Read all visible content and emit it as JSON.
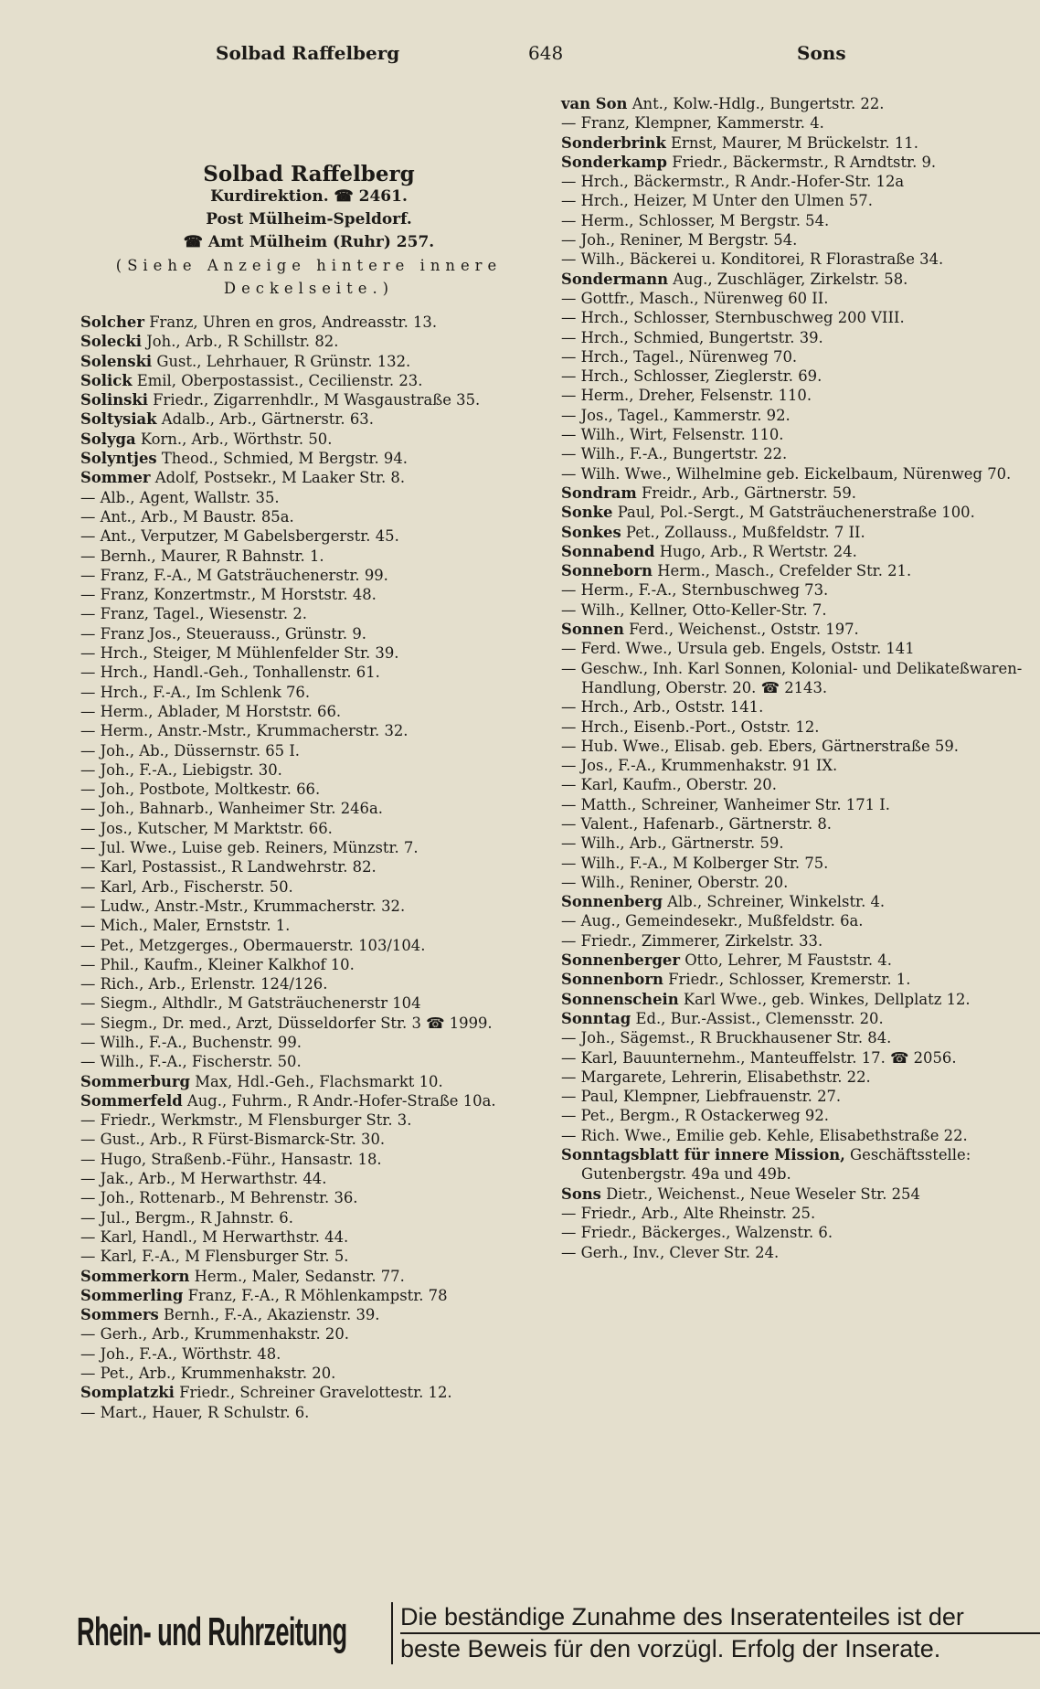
{
  "header": {
    "left": "Solbad Raffelberg",
    "page": "648",
    "right": "Sons"
  },
  "intro": {
    "title": "Solbad Raffelberg",
    "line1": "Kurdirektion. ☎ 2461.",
    "line2": "Post Mülheim-Speldorf.",
    "line3": "☎ Amt Mülheim (Ruhr) 257.",
    "line4": "(Siehe Anzeige hintere innere",
    "line5": "Deckelseite.)"
  },
  "left": [
    {
      "n": "Solcher",
      "t": "Franz, Uhren en gros, Andreasstr. 13."
    },
    {
      "n": "Solecki",
      "t": "Joh., Arb., R Schillstr. 82."
    },
    {
      "n": "Solenski",
      "t": "Gust., Lehrhauer, R Grünstr. 132."
    },
    {
      "n": "Solick",
      "t": "Emil, Oberpostassist., Cecilienstr. 23."
    },
    {
      "n": "Solinski",
      "t": "Friedr., Zigarrenhdlr., M Wasgaustraße 35."
    },
    {
      "n": "Soltysiak",
      "t": "Adalb., Arb., Gärtnerstr. 63."
    },
    {
      "n": "Solyga",
      "t": "Korn., Arb., Wörthstr. 50."
    },
    {
      "n": "Solyntjes",
      "t": "Theod., Schmied, M Bergstr. 94."
    },
    {
      "n": "Sommer",
      "t": "Adolf, Postsekr., M Laaker Str. 8."
    },
    {
      "n": "—",
      "t": "Alb., Agent, Wallstr. 35."
    },
    {
      "n": "—",
      "t": "Ant., Arb., M Baustr. 85a."
    },
    {
      "n": "—",
      "t": "Ant., Verputzer, M Gabelsbergerstr. 45."
    },
    {
      "n": "—",
      "t": "Bernh., Maurer, R Bahnstr. 1."
    },
    {
      "n": "—",
      "t": "Franz, F.-A., M Gatsträuchenerstr. 99."
    },
    {
      "n": "—",
      "t": "Franz, Konzertmstr., M Horststr. 48."
    },
    {
      "n": "—",
      "t": "Franz, Tagel., Wiesenstr. 2."
    },
    {
      "n": "—",
      "t": "Franz Jos., Steuerauss., Grünstr. 9."
    },
    {
      "n": "—",
      "t": "Hrch., Steiger, M Mühlenfelder Str. 39."
    },
    {
      "n": "—",
      "t": "Hrch., Handl.-Geh., Tonhallenstr. 61."
    },
    {
      "n": "—",
      "t": "Hrch., F.-A., Im Schlenk 76."
    },
    {
      "n": "—",
      "t": "Herm., Ablader, M Horststr. 66."
    },
    {
      "n": "—",
      "t": "Herm., Anstr.-Mstr., Krummacherstr. 32."
    },
    {
      "n": "—",
      "t": "Joh., Ab., Düssernstr. 65 I."
    },
    {
      "n": "—",
      "t": "Joh., F.-A., Liebigstr. 30."
    },
    {
      "n": "—",
      "t": "Joh., Postbote, Moltkestr. 66."
    },
    {
      "n": "—",
      "t": "Joh., Bahnarb., Wanheimer Str. 246a."
    },
    {
      "n": "—",
      "t": "Jos., Kutscher, M Marktstr. 66."
    },
    {
      "n": "—",
      "t": "Jul. Wwe., Luise geb. Reiners, Münzstr. 7."
    },
    {
      "n": "—",
      "t": "Karl, Postassist., R Landwehrstr. 82."
    },
    {
      "n": "—",
      "t": "Karl, Arb., Fischerstr. 50."
    },
    {
      "n": "—",
      "t": "Ludw., Anstr.-Mstr., Krummacherstr. 32."
    },
    {
      "n": "—",
      "t": "Mich., Maler, Ernststr. 1."
    },
    {
      "n": "—",
      "t": "Pet., Metzgerges., Obermauerstr. 103/104."
    },
    {
      "n": "—",
      "t": "Phil., Kaufm., Kleiner Kalkhof 10."
    },
    {
      "n": "—",
      "t": "Rich., Arb., Erlenstr. 124/126."
    },
    {
      "n": "—",
      "t": "Siegm., Althdlr., M Gatsträuchenerstr 104"
    },
    {
      "n": "—",
      "t": "Siegm., Dr. med., Arzt, Düsseldorfer Str. 3 ☎ 1999."
    },
    {
      "n": "—",
      "t": "Wilh., F.-A., Buchenstr. 99."
    },
    {
      "n": "—",
      "t": "Wilh., F.-A., Fischerstr. 50."
    },
    {
      "n": "Sommerburg",
      "t": "Max, Hdl.-Geh., Flachsmarkt 10."
    },
    {
      "n": "Sommerfeld",
      "t": "Aug., Fuhrm., R Andr.-Hofer-Straße 10a."
    },
    {
      "n": "—",
      "t": "Friedr., Werkmstr., M Flensburger Str. 3."
    },
    {
      "n": "—",
      "t": "Gust., Arb., R Fürst-Bismarck-Str. 30."
    },
    {
      "n": "—",
      "t": "Hugo, Straßenb.-Führ., Hansastr. 18."
    },
    {
      "n": "—",
      "t": "Jak., Arb., M Herwarthstr. 44."
    },
    {
      "n": "—",
      "t": "Joh., Rottenarb., M Behrenstr. 36."
    },
    {
      "n": "—",
      "t": "Jul., Bergm., R Jahnstr. 6."
    },
    {
      "n": "—",
      "t": "Karl, Handl., M Herwarthstr. 44."
    },
    {
      "n": "—",
      "t": "Karl, F.-A., M Flensburger Str. 5."
    },
    {
      "n": "Sommerkorn",
      "t": "Herm., Maler, Sedanstr. 77."
    },
    {
      "n": "Sommerling",
      "t": "Franz, F.-A., R Möhlenkampstr. 78"
    },
    {
      "n": "Sommers",
      "t": "Bernh., F.-A., Akazienstr. 39."
    },
    {
      "n": "—",
      "t": "Gerh., Arb., Krummenhakstr. 20."
    },
    {
      "n": "—",
      "t": "Joh., F.-A., Wörthstr. 48."
    },
    {
      "n": "—",
      "t": "Pet., Arb., Krummenhakstr. 20."
    },
    {
      "n": "Somplatzki",
      "t": "Friedr., Schreiner Gravelottestr. 12."
    },
    {
      "n": "—",
      "t": "Mart., Hauer, R Schulstr. 6."
    }
  ],
  "right": [
    {
      "n": "van Son",
      "t": "Ant., Kolw.-Hdlg., Bungertstr. 22."
    },
    {
      "n": "—",
      "t": "Franz, Klempner, Kammerstr. 4."
    },
    {
      "n": "Sonderbrink",
      "t": "Ernst, Maurer, M Brückelstr. 11."
    },
    {
      "n": "Sonderkamp",
      "t": "Friedr., Bäckermstr., R Arndtstr. 9."
    },
    {
      "n": "—",
      "t": "Hrch., Bäckermstr., R Andr.-Hofer-Str. 12a"
    },
    {
      "n": "—",
      "t": "Hrch., Heizer, M Unter den Ulmen 57."
    },
    {
      "n": "—",
      "t": "Herm., Schlosser, M Bergstr. 54."
    },
    {
      "n": "—",
      "t": "Joh., Reniner, M Bergstr. 54."
    },
    {
      "n": "—",
      "t": "Wilh., Bäckerei u. Konditorei, R Florastraße 34."
    },
    {
      "n": "Sondermann",
      "t": "Aug., Zuschläger, Zirkelstr. 58."
    },
    {
      "n": "—",
      "t": "Gottfr., Masch., Nürenweg 60 II."
    },
    {
      "n": "—",
      "t": "Hrch., Schlosser, Sternbuschweg 200 VIII."
    },
    {
      "n": "—",
      "t": "Hrch., Schmied, Bungertstr. 39."
    },
    {
      "n": "—",
      "t": "Hrch., Tagel., Nürenweg 70."
    },
    {
      "n": "—",
      "t": "Hrch., Schlosser, Zieglerstr. 69."
    },
    {
      "n": "—",
      "t": "Herm., Dreher, Felsenstr. 110."
    },
    {
      "n": "—",
      "t": "Jos., Tagel., Kammerstr. 92."
    },
    {
      "n": "—",
      "t": "Wilh., Wirt, Felsenstr. 110."
    },
    {
      "n": "—",
      "t": "Wilh., F.-A., Bungertstr. 22."
    },
    {
      "n": "—",
      "t": "Wilh. Wwe., Wilhelmine geb. Eickelbaum, Nürenweg 70."
    },
    {
      "n": "Sondram",
      "t": "Freidr., Arb., Gärtnerstr. 59."
    },
    {
      "n": "Sonke",
      "t": "Paul, Pol.-Sergt., M Gatsträuchenerstraße 100."
    },
    {
      "n": "Sonkes",
      "t": "Pet., Zollauss., Mußfeldstr. 7 II."
    },
    {
      "n": "Sonnabend",
      "t": "Hugo, Arb., R Wertstr. 24."
    },
    {
      "n": "Sonneborn",
      "t": "Herm., Masch., Crefelder Str. 21."
    },
    {
      "n": "—",
      "t": "Herm., F.-A., Sternbuschweg 73."
    },
    {
      "n": "—",
      "t": "Wilh., Kellner, Otto-Keller-Str. 7."
    },
    {
      "n": "Sonnen",
      "t": "Ferd., Weichenst., Oststr. 197."
    },
    {
      "n": "—",
      "t": "Ferd. Wwe., Ursula geb. Engels, Oststr. 141"
    },
    {
      "n": "—",
      "t": "Geschw., Inh. Karl Sonnen, Kolonial- und Delikateßwaren-Handlung, Oberstr. 20. ☎ 2143."
    },
    {
      "n": "—",
      "t": "Hrch., Arb., Oststr. 141."
    },
    {
      "n": "—",
      "t": "Hrch., Eisenb.-Port., Oststr. 12."
    },
    {
      "n": "—",
      "t": "Hub. Wwe., Elisab. geb. Ebers, Gärtnerstraße 59."
    },
    {
      "n": "—",
      "t": "Jos., F.-A., Krummenhakstr. 91 IX."
    },
    {
      "n": "—",
      "t": "Karl, Kaufm., Oberstr. 20."
    },
    {
      "n": "—",
      "t": "Matth., Schreiner, Wanheimer Str. 171 I."
    },
    {
      "n": "—",
      "t": "Valent., Hafenarb., Gärtnerstr. 8."
    },
    {
      "n": "—",
      "t": "Wilh., Arb., Gärtnerstr. 59."
    },
    {
      "n": "—",
      "t": "Wilh., F.-A., M Kolberger Str. 75."
    },
    {
      "n": "—",
      "t": "Wilh., Reniner, Oberstr. 20."
    },
    {
      "n": "Sonnenberg",
      "t": "Alb., Schreiner, Winkelstr. 4."
    },
    {
      "n": "—",
      "t": "Aug., Gemeindesekr., Mußfeldstr. 6a."
    },
    {
      "n": "—",
      "t": "Friedr., Zimmerer, Zirkelstr. 33."
    },
    {
      "n": "Sonnenberger",
      "t": "Otto, Lehrer, M Fauststr. 4."
    },
    {
      "n": "Sonnenborn",
      "t": "Friedr., Schlosser, Kremerstr. 1."
    },
    {
      "n": "Sonnenschein",
      "t": "Karl Wwe., geb. Winkes, Dellplatz 12."
    },
    {
      "n": "Sonntag",
      "t": "Ed., Bur.-Assist., Clemensstr. 20."
    },
    {
      "n": "—",
      "t": "Joh., Sägemst., R Bruckhausener Str. 84."
    },
    {
      "n": "—",
      "t": "Karl, Bauunternehm., Manteuffelstr. 17. ☎ 2056."
    },
    {
      "n": "—",
      "t": "Margarete, Lehrerin, Elisabethstr. 22."
    },
    {
      "n": "—",
      "t": "Paul, Klempner, Liebfrauenstr. 27."
    },
    {
      "n": "—",
      "t": "Pet., Bergm., R Ostackerweg 92."
    },
    {
      "n": "—",
      "t": "Rich. Wwe., Emilie geb. Kehle, Elisabethstraße 22."
    },
    {
      "n": "Sonntagsblatt für innere Mission,",
      "t": "Geschäftsstelle: Gutenbergstr. 49a und 49b."
    },
    {
      "n": "Sons",
      "t": "Dietr., Weichenst., Neue Weseler Str. 254"
    },
    {
      "n": "—",
      "t": "Friedr., Arb., Alte Rheinstr. 25."
    },
    {
      "n": "—",
      "t": "Friedr., Bäckerges., Walzenstr. 6."
    },
    {
      "n": "—",
      "t": "Gerh., Inv., Clever Str. 24."
    }
  ],
  "footer": {
    "logo": "Rhein- und Ruhrzeitung",
    "ad_line1": "Die beständige Zunahme des Inseratenteiles ist der",
    "ad_line2": "beste Beweis für den vorzügl. Erfolg der Inserate."
  }
}
